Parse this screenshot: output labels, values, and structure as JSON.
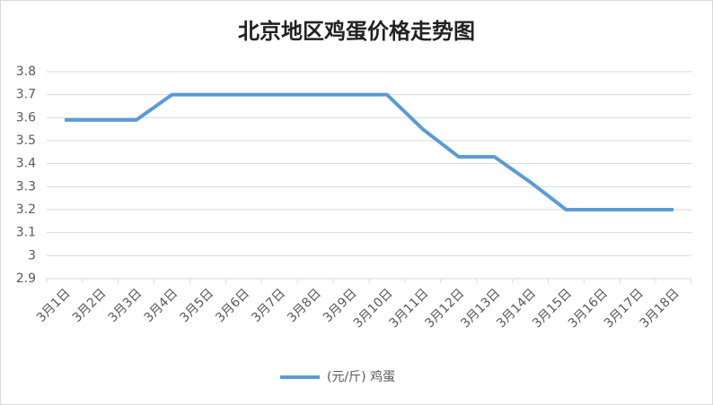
{
  "chart_data": {
    "type": "line",
    "title": "北京地区鸡蛋价格走势图",
    "categories": [
      "3月1日",
      "3月2日",
      "3月3日",
      "3月4日",
      "3月5日",
      "3月6日",
      "3月7日",
      "3月8日",
      "3月9日",
      "3月10日",
      "3月11日",
      "3月12日",
      "3月13日",
      "3月14日",
      "3月15日",
      "3月16日",
      "3月17日",
      "3月18日"
    ],
    "series": [
      {
        "name": "(元/斤) 鸡蛋",
        "color": "#5b9bd5",
        "values": [
          3.59,
          3.59,
          3.59,
          3.7,
          3.7,
          3.7,
          3.7,
          3.7,
          3.7,
          3.7,
          3.55,
          3.43,
          3.43,
          3.32,
          3.2,
          3.2,
          3.2,
          3.2
        ]
      }
    ],
    "ylim": [
      2.9,
      3.8
    ],
    "yticks": [
      2.9,
      3,
      3.1,
      3.2,
      3.3,
      3.4,
      3.5,
      3.6,
      3.7,
      3.8
    ],
    "grid": true,
    "legend": "bottom"
  }
}
